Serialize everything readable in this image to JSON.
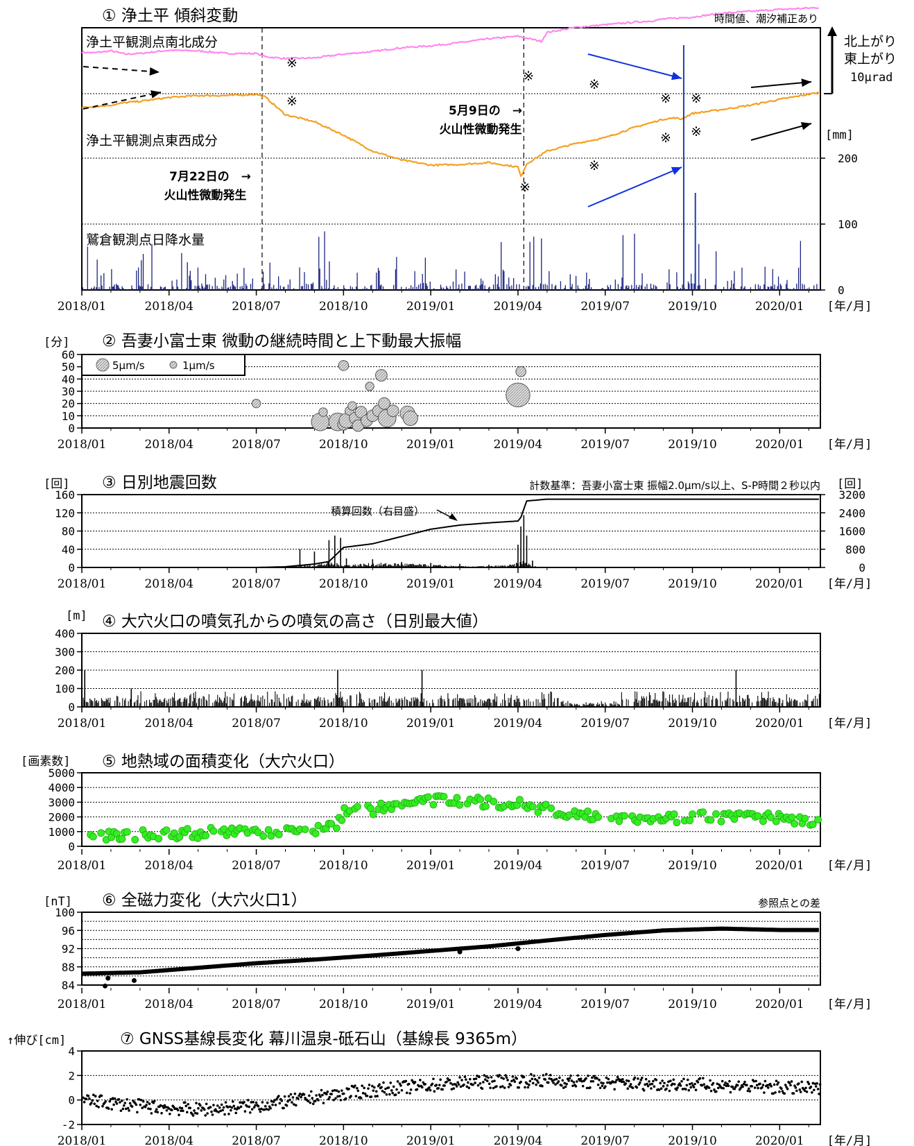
{
  "x_ticks": [
    "2018/01",
    "2018/04",
    "2018/07",
    "2018/10",
    "2019/01",
    "2019/04",
    "2019/07",
    "2019/10",
    "2020/01"
  ],
  "x_unit": "[年/月]",
  "chart_data": [
    {
      "type": "line",
      "title": "① 浄土平 傾斜変動",
      "note": "時間値、潮汐補正あり",
      "series": [
        {
          "name": "浄土平観測点南北成分",
          "color": "#ff88ee",
          "points": [
            [
              0,
              0.3
            ],
            [
              0.4,
              0.2
            ],
            [
              1.0,
              0.5
            ],
            [
              1.5,
              0.0
            ],
            [
              2.0,
              0.1
            ],
            [
              3.0,
              0.6
            ],
            [
              4.0,
              0.5
            ],
            [
              5.0,
              0.1
            ],
            [
              6.0,
              0.1
            ],
            [
              6.3,
              -0.4
            ],
            [
              7.0,
              -0.7
            ],
            [
              8.0,
              -0.6
            ],
            [
              9.0,
              0.0
            ],
            [
              10.0,
              0.4
            ],
            [
              11.0,
              1.0
            ],
            [
              12.0,
              1.3
            ],
            [
              13.0,
              1.8
            ],
            [
              14.0,
              2.4
            ],
            [
              15.0,
              2.8
            ],
            [
              15.8,
              2.0
            ],
            [
              16.0,
              3.4
            ],
            [
              16.5,
              3.8
            ],
            [
              17.0,
              4.2
            ],
            [
              18.0,
              4.6
            ],
            [
              19.0,
              5.0
            ],
            [
              19.6,
              5.2
            ],
            [
              20.0,
              5.5
            ],
            [
              21.0,
              5.8
            ],
            [
              22.0,
              6.4
            ],
            [
              23.0,
              6.7
            ],
            [
              24.0,
              7.0
            ],
            [
              25.0,
              7.2
            ],
            [
              25.4,
              7.3
            ]
          ]
        },
        {
          "name": "浄土平観測点東西成分",
          "color": "#f4a020",
          "points": [
            [
              0,
              -2.2
            ],
            [
              1.0,
              -1.8
            ],
            [
              1.5,
              -1.4
            ],
            [
              2.0,
              -1.2
            ],
            [
              3.0,
              -0.6
            ],
            [
              4.0,
              -0.3
            ],
            [
              5.0,
              -0.3
            ],
            [
              6.0,
              -0.1
            ],
            [
              6.3,
              -0.5
            ],
            [
              7.0,
              -3.3
            ],
            [
              8.0,
              -4.4
            ],
            [
              9.0,
              -6.5
            ],
            [
              10.0,
              -9.0
            ],
            [
              11.0,
              -10.4
            ],
            [
              12.0,
              -11.2
            ],
            [
              13.0,
              -11.1
            ],
            [
              14.0,
              -10.8
            ],
            [
              15.0,
              -11.5
            ],
            [
              15.1,
              -13.0
            ],
            [
              15.3,
              -11.0
            ],
            [
              16.0,
              -9.0
            ],
            [
              17.0,
              -7.8
            ],
            [
              18.0,
              -6.9
            ],
            [
              19.0,
              -5.3
            ],
            [
              20.0,
              -4.0
            ],
            [
              20.4,
              -3.8
            ],
            [
              20.6,
              -4.0
            ],
            [
              21.0,
              -3.1
            ],
            [
              22.0,
              -2.5
            ],
            [
              23.0,
              -1.8
            ],
            [
              24.0,
              -0.9
            ],
            [
              25.0,
              -0.1
            ],
            [
              25.4,
              0.2
            ]
          ]
        }
      ],
      "rain_label": "鷲倉観測点日降水量",
      "rain_ytick_labels": [
        "0",
        "100",
        "200"
      ],
      "rain_unit": "[mm]",
      "rain_y": [
        0,
        200
      ],
      "scale_labels": [
        "北上がり",
        "東上がり",
        "10μrad"
      ],
      "annotations": [
        {
          "text": "5月9日の　→",
          "line2": "火山性微動発生"
        },
        {
          "text": "7月22日の　→",
          "line2": "火山性微動発生"
        }
      ],
      "marker": "※"
    },
    {
      "type": "scatter",
      "title": "② 吾妻小富士東 微動の継続時間と上下動最大振幅",
      "y_unit": "[分]",
      "ylim": [
        0,
        60
      ],
      "y_ticks": [
        0,
        10,
        20,
        30,
        40,
        50,
        60
      ],
      "legend": [
        {
          "label": "5μm/s",
          "amp": 5
        },
        {
          "label": "1μm/s",
          "amp": 1
        }
      ],
      "legend_position": "top-left",
      "points": [
        [
          6.0,
          20,
          1
        ],
        [
          8.2,
          5,
          4
        ],
        [
          8.3,
          13,
          1
        ],
        [
          8.8,
          5,
          4
        ],
        [
          9.0,
          51,
          1.5
        ],
        [
          9.0,
          3,
          2
        ],
        [
          9.1,
          6,
          3
        ],
        [
          9.2,
          14,
          1
        ],
        [
          9.3,
          18,
          1
        ],
        [
          9.4,
          8,
          2
        ],
        [
          9.5,
          2,
          2
        ],
        [
          9.6,
          13,
          2
        ],
        [
          9.8,
          6,
          2
        ],
        [
          9.9,
          34,
          1
        ],
        [
          10.0,
          10,
          2
        ],
        [
          10.2,
          14,
          2
        ],
        [
          10.3,
          43,
          2
        ],
        [
          10.4,
          20,
          2
        ],
        [
          10.5,
          8,
          4
        ],
        [
          10.7,
          14,
          2
        ],
        [
          11.2,
          12,
          3
        ],
        [
          11.3,
          8,
          3
        ],
        [
          15.0,
          27,
          6
        ],
        [
          15.1,
          46,
          1.5
        ]
      ]
    },
    {
      "type": "bar",
      "title": "③ 日別地震回数",
      "note": "計数基準：吾妻小富士東 振幅2.0μm/s以上、S-P時間２秒以内",
      "y_unit": "[回]",
      "ylim": [
        0,
        160
      ],
      "y_ticks": [
        0,
        40,
        80,
        120,
        160
      ],
      "y2_unit": "[回]",
      "y2lim": [
        0,
        3200
      ],
      "y2_ticks": [
        0,
        800,
        1600,
        2400,
        3200
      ],
      "cumulative_label": "積算回数（右目盛）",
      "peaks": [
        [
          7.5,
          40
        ],
        [
          8.0,
          35
        ],
        [
          8.5,
          60
        ],
        [
          8.7,
          70
        ],
        [
          8.9,
          65
        ],
        [
          9.1,
          20
        ],
        [
          10.0,
          18
        ],
        [
          11.0,
          12
        ],
        [
          12.0,
          10
        ],
        [
          13.0,
          8
        ],
        [
          14.0,
          6
        ],
        [
          15.0,
          50
        ],
        [
          15.1,
          90
        ],
        [
          15.2,
          115
        ],
        [
          15.3,
          70
        ],
        [
          15.5,
          15
        ]
      ],
      "cumulative": [
        [
          0,
          0
        ],
        [
          6.0,
          0
        ],
        [
          7.0,
          30
        ],
        [
          8.0,
          150
        ],
        [
          8.5,
          260
        ],
        [
          9.0,
          880
        ],
        [
          10.0,
          1040
        ],
        [
          11.0,
          1360
        ],
        [
          12.0,
          1680
        ],
        [
          13.0,
          1860
        ],
        [
          14.0,
          1960
        ],
        [
          15.0,
          2040
        ],
        [
          15.1,
          2200
        ],
        [
          15.3,
          2920
        ],
        [
          16.0,
          3000
        ],
        [
          25.4,
          3000
        ]
      ]
    },
    {
      "type": "bar",
      "title": "④ 大穴火口の噴気孔からの噴気の高さ（日別最大値）",
      "y_unit": "[m]",
      "ylim": [
        0,
        400
      ],
      "y_ticks": [
        0,
        100,
        200,
        300,
        400
      ],
      "spikes": [
        [
          0.1,
          200
        ],
        [
          1.7,
          100
        ],
        [
          8.8,
          200
        ],
        [
          11.7,
          200
        ],
        [
          22.5,
          200
        ]
      ]
    },
    {
      "type": "scatter",
      "title": "⑤ 地熱域の面積変化（大穴火口）",
      "y_unit": "[画素数]",
      "ylim": [
        0,
        5000
      ],
      "y_ticks": [
        0,
        1000,
        2000,
        3000,
        4000,
        5000
      ],
      "trend": [
        [
          0,
          700
        ],
        [
          2,
          800
        ],
        [
          4,
          900
        ],
        [
          6,
          1000
        ],
        [
          8,
          1200
        ],
        [
          8.7,
          1400
        ],
        [
          9.0,
          2300
        ],
        [
          10,
          2500
        ],
        [
          11,
          2800
        ],
        [
          12,
          3100
        ],
        [
          13,
          3100
        ],
        [
          14,
          3000
        ],
        [
          15,
          2900
        ],
        [
          16,
          2500
        ],
        [
          17,
          2200
        ],
        [
          18,
          2100
        ],
        [
          19,
          2000
        ],
        [
          20,
          1900
        ],
        [
          21,
          2000
        ],
        [
          22,
          2000
        ],
        [
          23,
          2100
        ],
        [
          24,
          1900
        ],
        [
          25,
          1700
        ],
        [
          25.4,
          2000
        ]
      ]
    },
    {
      "type": "line",
      "title": "⑥ 全磁力変化（大穴火口1）",
      "note": "参照点との差",
      "y_unit": "[nT]",
      "ylim": [
        84,
        100
      ],
      "y_ticks": [
        84,
        88,
        92,
        96,
        100
      ],
      "y_tick_labels": [
        "84",
        "88",
        "92",
        "96",
        "100"
      ],
      "points": [
        [
          0,
          86.5
        ],
        [
          2,
          86.8
        ],
        [
          4,
          87.8
        ],
        [
          6,
          88.8
        ],
        [
          8,
          89.6
        ],
        [
          10,
          90.5
        ],
        [
          12,
          91.5
        ],
        [
          14,
          92.5
        ],
        [
          16,
          93.8
        ],
        [
          18,
          95.0
        ],
        [
          20,
          96.0
        ],
        [
          22,
          96.4
        ],
        [
          24,
          96.1
        ],
        [
          25.4,
          96.1
        ]
      ]
    },
    {
      "type": "scatter",
      "title": "⑦ GNSS基線長変化 幕川温泉-砥石山（基線長 9365m）",
      "y_unit": "↑伸び[cm]",
      "ylim": [
        -2,
        4
      ],
      "y_ticks": [
        -2,
        0,
        2,
        4
      ],
      "trend": [
        [
          0,
          0
        ],
        [
          2,
          -0.5
        ],
        [
          4,
          -0.8
        ],
        [
          6,
          -0.5
        ],
        [
          8,
          0.2
        ],
        [
          10,
          0.8
        ],
        [
          12,
          1.2
        ],
        [
          14,
          1.5
        ],
        [
          16,
          1.6
        ],
        [
          18,
          1.4
        ],
        [
          20,
          1.3
        ],
        [
          22,
          1.2
        ],
        [
          24,
          1.0
        ],
        [
          25.4,
          0.9
        ]
      ]
    }
  ]
}
